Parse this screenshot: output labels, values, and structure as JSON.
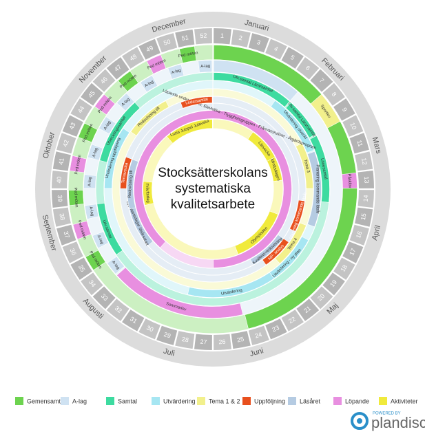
{
  "title_lines": [
    "Stocksätterskolans",
    "systematiska",
    "kvalitetsarbete"
  ],
  "months": [
    "Januari",
    "Februari",
    "Mars",
    "April",
    "Maj",
    "Juni",
    "Juli",
    "Augusti",
    "September",
    "Oktober",
    "November",
    "December"
  ],
  "weeks": [
    1,
    2,
    3,
    4,
    5,
    6,
    7,
    8,
    9,
    10,
    11,
    12,
    13,
    14,
    15,
    16,
    17,
    18,
    19,
    20,
    21,
    22,
    23,
    24,
    25,
    26,
    27,
    28,
    29,
    30,
    31,
    32,
    33,
    34,
    35,
    36,
    37,
    38,
    39,
    40,
    41,
    42,
    43,
    44,
    45,
    46,
    47,
    48,
    49,
    50,
    51,
    52
  ],
  "activities": [
    "Utv.samtal Lärarsamtal",
    "Utv.samtal Lärarsamtal",
    "Utvärdering utveckl",
    "Sportlov",
    "Påsklov",
    "Lönesamtal",
    "Tema 3",
    "Planering kommande läsår",
    "Planering kommande läsår",
    "Läsvecka",
    "Idrottsdagen",
    "Olympiaden",
    "Friluftsdag",
    "Lucia Julspel Julavslut",
    "Löpande under läsåret: Elevhälsa - Trygghetsgruppen - Frånvarorutiner - Åtgärdsprogram",
    "Utvärdering - ny plan",
    "Kvalitets-redovisning",
    "NP- analys",
    "Tema 4",
    "Sommarlov",
    "Utvärdering",
    "Utv.samtal",
    "Uppstartsdagar läsårsstart",
    "Redovisning till",
    "Utvärdering uppföljning",
    "Temavecka",
    "Utvecklingssamtal",
    "Redovisning till",
    "Ledarsamtal",
    "A-lag",
    "Ped möten"
  ],
  "legend": [
    {
      "label": "Gemensamt",
      "color": "#6dd34f"
    },
    {
      "label": "A-lag",
      "color": "#cfe2f2"
    },
    {
      "label": "Samtal",
      "color": "#3ddba0"
    },
    {
      "label": "Utvärdering",
      "color": "#a6e6f2"
    },
    {
      "label": "Tema 1 & 2",
      "color": "#f2f08c"
    },
    {
      "label": "Uppföljning",
      "color": "#e8501e"
    },
    {
      "label": "Läsåret",
      "color": "#b5cbe2"
    },
    {
      "label": "Löpande",
      "color": "#e88fe0"
    },
    {
      "label": "Aktiviteter",
      "color": "#f0ea3c"
    }
  ],
  "branding": {
    "powered_by": "POWERED BY",
    "name": "plandisc"
  }
}
